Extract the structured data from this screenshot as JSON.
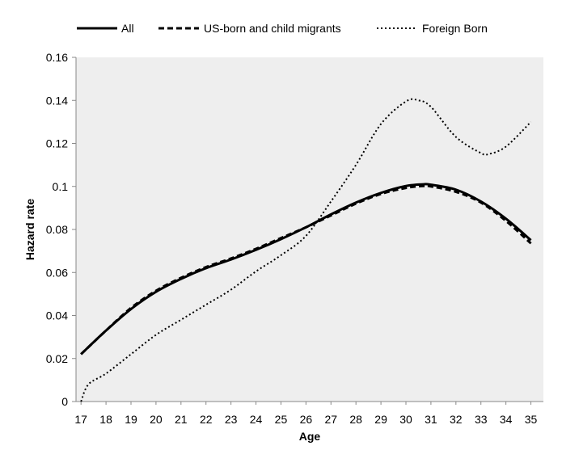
{
  "chart_data": {
    "type": "line",
    "xlabel": "Age",
    "ylabel": "Hazard rate",
    "xlim": [
      16.8,
      35.5
    ],
    "ylim": [
      0,
      0.16
    ],
    "x_ticks": [
      17,
      18,
      19,
      20,
      21,
      22,
      23,
      24,
      25,
      26,
      27,
      28,
      29,
      30,
      31,
      32,
      33,
      34,
      35
    ],
    "y_ticks": [
      0,
      0.02,
      0.04,
      0.06,
      0.08,
      0.1,
      0.12,
      0.14,
      0.16
    ],
    "x_tick_labels": [
      "17",
      "18",
      "19",
      "20",
      "21",
      "22",
      "23",
      "24",
      "25",
      "26",
      "27",
      "28",
      "29",
      "30",
      "31",
      "32",
      "33",
      "34",
      "35"
    ],
    "y_tick_labels": [
      "0",
      "0.02",
      "0.04",
      "0.06",
      "0.08",
      "0.1",
      "0.12",
      "0.14",
      "0.16"
    ],
    "grid": false,
    "background_color": "#eeeeee",
    "legend_position": "top",
    "series": [
      {
        "name": "All",
        "style": "solid",
        "color": "#000000",
        "x": [
          17,
          18,
          19,
          20,
          21,
          22,
          23,
          24,
          25,
          26,
          27,
          28,
          29,
          30,
          30.7,
          31,
          32,
          33,
          34,
          35
        ],
        "y": [
          0.022,
          0.033,
          0.043,
          0.051,
          0.057,
          0.062,
          0.066,
          0.0705,
          0.0755,
          0.081,
          0.087,
          0.0925,
          0.097,
          0.1002,
          0.101,
          0.1008,
          0.0985,
          0.093,
          0.085,
          0.075
        ]
      },
      {
        "name": "US-born and child migrants",
        "style": "dashed",
        "color": "#000000",
        "x": [
          17,
          18,
          19,
          20,
          21,
          22,
          23,
          24,
          25,
          26,
          27,
          28,
          29,
          30,
          30.7,
          31,
          32,
          33,
          34,
          35
        ],
        "y": [
          0.022,
          0.033,
          0.0435,
          0.0515,
          0.0575,
          0.0625,
          0.0665,
          0.071,
          0.076,
          0.081,
          0.0865,
          0.092,
          0.0965,
          0.0993,
          0.1002,
          0.1,
          0.0975,
          0.0925,
          0.084,
          0.0735
        ]
      },
      {
        "name": "Foreign Born",
        "style": "dotted",
        "color": "#000000",
        "x": [
          17,
          17.3,
          18,
          19,
          20,
          21,
          22,
          23,
          24,
          25,
          26,
          27,
          28,
          29,
          30,
          30.5,
          31,
          32,
          33,
          33.3,
          34,
          35
        ],
        "y": [
          0.0,
          0.008,
          0.013,
          0.022,
          0.031,
          0.038,
          0.045,
          0.052,
          0.0605,
          0.068,
          0.077,
          0.093,
          0.11,
          0.129,
          0.1395,
          0.14,
          0.137,
          0.123,
          0.1155,
          0.115,
          0.1185,
          0.13
        ]
      }
    ]
  }
}
